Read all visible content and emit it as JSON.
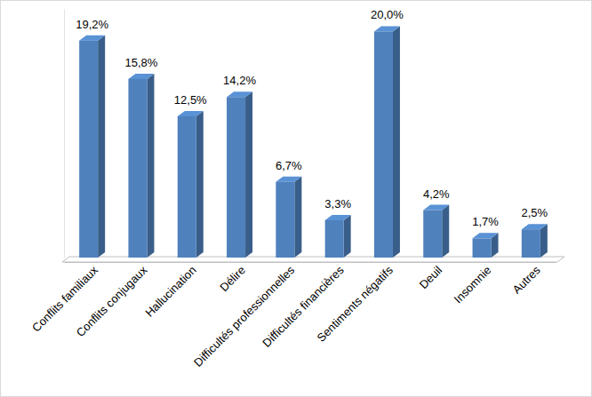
{
  "chart_data": {
    "type": "bar",
    "categories": [
      "Conflits familiaux",
      "Conflits conjugaux",
      "Hallucination",
      "Délire",
      "Difficultés professionnelles",
      "Difficultés financières",
      "Sentiments négatifs",
      "Deuil",
      "Insomnie",
      "Autres"
    ],
    "values": [
      19.2,
      15.8,
      12.5,
      14.2,
      6.7,
      3.3,
      20.0,
      4.2,
      1.7,
      2.5
    ],
    "value_labels": [
      "19,2%",
      "15,8%",
      "12,5%",
      "14,2%",
      "6,7%",
      "3,3%",
      "20,0%",
      "4,2%",
      "1,7%",
      "2,5%"
    ],
    "color": "#4f81bd",
    "ylim": [
      0,
      22
    ],
    "data_labels": true,
    "tick_labels": "x",
    "grid": false
  }
}
